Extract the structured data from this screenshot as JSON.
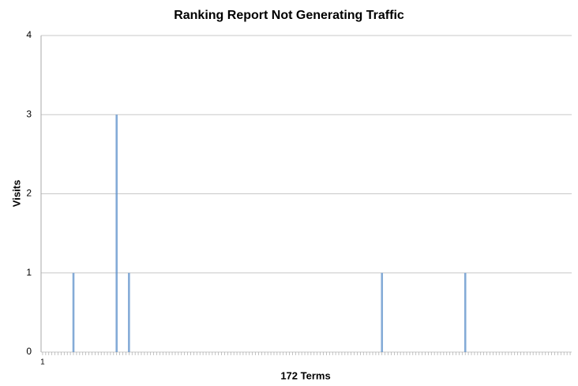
{
  "chart_data": {
    "type": "bar",
    "title": "Ranking Report Not Generating Traffic",
    "x_label": "172 Terms",
    "y_label": "Visits",
    "color": "#5b8fc9",
    "grid": true,
    "ylim": [
      0,
      4
    ],
    "yticks": [
      0,
      1,
      2,
      3,
      4
    ],
    "categories": [
      "1",
      null,
      null,
      null,
      null,
      null,
      null,
      null,
      null,
      null,
      null,
      null,
      null,
      null,
      null,
      null,
      null,
      null,
      null,
      null,
      null,
      null,
      null,
      null,
      null,
      null,
      null,
      null,
      null,
      null,
      null,
      null,
      null,
      null,
      null,
      null,
      null,
      null,
      null,
      null,
      null,
      null,
      null,
      null,
      null,
      null,
      null,
      null,
      null,
      null,
      null,
      null,
      null,
      null,
      null,
      null,
      null,
      null,
      null,
      null,
      null,
      null,
      null,
      null,
      null,
      null,
      null,
      null,
      null,
      null,
      null,
      null,
      null,
      null,
      null,
      null,
      null,
      null,
      null,
      null,
      null,
      null,
      null,
      null,
      null,
      null,
      null,
      null,
      null,
      null,
      null,
      null,
      null,
      null,
      null,
      null,
      null,
      null,
      null,
      null,
      null,
      null,
      null,
      null,
      null,
      null,
      null,
      null,
      null,
      null,
      null,
      null,
      null,
      null,
      null,
      null,
      null,
      null,
      null,
      null,
      null,
      null,
      null,
      null,
      null,
      null,
      null,
      null,
      null,
      null,
      null,
      null,
      null,
      null,
      null,
      null,
      null,
      null,
      null,
      null,
      null,
      null,
      null,
      null,
      null,
      null,
      null,
      null,
      null,
      null,
      null,
      null,
      null,
      null,
      null,
      null,
      null,
      null,
      null,
      null,
      null,
      null,
      null,
      null,
      null,
      null,
      null,
      null,
      null,
      null,
      null,
      null
    ],
    "values": [
      0,
      0,
      0,
      0,
      0,
      0,
      0,
      0,
      0,
      0,
      1,
      0,
      0,
      0,
      0,
      0,
      0,
      0,
      0,
      0,
      0,
      0,
      0,
      0,
      3,
      0,
      0,
      0,
      1,
      0,
      0,
      0,
      0,
      0,
      0,
      0,
      0,
      0,
      0,
      0,
      0,
      0,
      0,
      0,
      0,
      0,
      0,
      0,
      0,
      0,
      0,
      0,
      0,
      0,
      0,
      0,
      0,
      0,
      0,
      0,
      0,
      0,
      0,
      0,
      0,
      0,
      0,
      0,
      0,
      0,
      0,
      0,
      0,
      0,
      0,
      0,
      0,
      0,
      0,
      0,
      0,
      0,
      0,
      0,
      0,
      0,
      0,
      0,
      0,
      0,
      0,
      0,
      0,
      0,
      0,
      0,
      0,
      0,
      0,
      0,
      0,
      0,
      0,
      0,
      0,
      0,
      0,
      0,
      0,
      0,
      1,
      0,
      0,
      0,
      0,
      0,
      0,
      0,
      0,
      0,
      0,
      0,
      0,
      0,
      0,
      0,
      0,
      0,
      0,
      0,
      0,
      0,
      0,
      0,
      0,
      0,
      0,
      1,
      0,
      0,
      0,
      0,
      0,
      0,
      0,
      0,
      0,
      0,
      0,
      0,
      0,
      0,
      0,
      0,
      0,
      0,
      0,
      0,
      0,
      0,
      0,
      0,
      0,
      0,
      0,
      0,
      0,
      0,
      0,
      0,
      0,
      0
    ]
  }
}
